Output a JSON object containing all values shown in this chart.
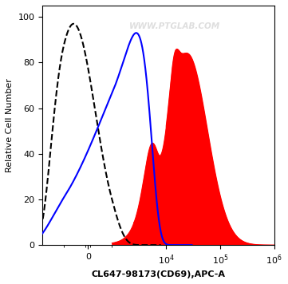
{
  "title": "",
  "xlabel": "CL647-98173(CD69),APC-A",
  "ylabel": "Relative Cell Number",
  "watermark": "WWW.PTGLAB.COM",
  "ylim": [
    0,
    105
  ],
  "yticks": [
    0,
    20,
    40,
    60,
    80,
    100
  ],
  "background_color": "#ffffff",
  "symlog_linthresh": 1000,
  "symlog_linscale": 0.4,
  "dashed_mu": -600,
  "dashed_sigma": 900,
  "dashed_amp": 97,
  "blue_mu": 2800,
  "blue_sigma": 2200,
  "blue_amp": 93,
  "red_small_mu_log": 8.3,
  "red_small_sigma_log": 0.35,
  "red_small_amp": 28,
  "red_main_mu_log": 10.1,
  "red_main_sigma_log": 0.85,
  "red_main_amp": 84,
  "red_bump_mu_log": 9.55,
  "red_bump_sigma_log": 0.18,
  "red_bump_amp": 15
}
